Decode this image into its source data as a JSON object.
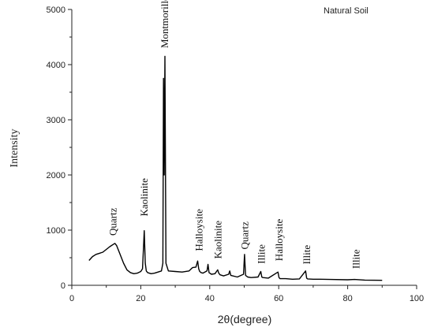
{
  "chart_data": {
    "type": "line",
    "title": "",
    "xlabel": "2θ(degree)",
    "ylabel": "Intensity",
    "xlim": [
      0,
      100
    ],
    "ylim": [
      0,
      5000
    ],
    "x_ticks": [
      0,
      20,
      40,
      60,
      80,
      100
    ],
    "y_ticks": [
      0,
      1000,
      2000,
      3000,
      4000,
      5000
    ],
    "grid": false,
    "legend": {
      "position": "top-right",
      "entries": [
        "Natural Soil"
      ]
    },
    "series": [
      {
        "name": "Natural Soil",
        "color": "#000000",
        "x": [
          5,
          6,
          7,
          8,
          9,
          10,
          11,
          12,
          12.5,
          13,
          14,
          15,
          16,
          17,
          18,
          19,
          20,
          20.5,
          20.8,
          21,
          21.3,
          21.6,
          22,
          23,
          24,
          25,
          26,
          26.4,
          26.6,
          26.8,
          27,
          27.3,
          28,
          30,
          32,
          34,
          35,
          36,
          36.5,
          36.8,
          37.1,
          37.5,
          38,
          39.2,
          39.5,
          39.8,
          40.5,
          41.5,
          42.3,
          42.6,
          43,
          44,
          45.5,
          45.8,
          46.1,
          48,
          49.8,
          50.1,
          50.4,
          51,
          52,
          54,
          54.8,
          55.1,
          55.4,
          57,
          59.8,
          60.1,
          60.4,
          62,
          64,
          66,
          67.8,
          68.1,
          68.4,
          70,
          72,
          75,
          80,
          82,
          85,
          90
        ],
        "y": [
          450,
          520,
          560,
          580,
          600,
          650,
          700,
          740,
          760,
          720,
          560,
          400,
          280,
          230,
          210,
          220,
          250,
          300,
          700,
          990,
          400,
          260,
          230,
          210,
          220,
          240,
          260,
          400,
          3750,
          2000,
          4150,
          400,
          260,
          250,
          240,
          260,
          320,
          330,
          440,
          300,
          250,
          230,
          220,
          260,
          380,
          230,
          200,
          210,
          280,
          220,
          190,
          170,
          200,
          260,
          180,
          150,
          200,
          560,
          180,
          150,
          140,
          150,
          250,
          150,
          140,
          130,
          240,
          140,
          120,
          120,
          110,
          115,
          260,
          130,
          115,
          110,
          110,
          105,
          100,
          105,
          95,
          90
        ]
      }
    ],
    "annotations": [
      {
        "text": "Quartz",
        "x": 12,
        "y": 900
      },
      {
        "text": "Kaolinite",
        "x": 21,
        "y": 1250
      },
      {
        "text": "Montmorillonite",
        "x": 27,
        "y": 4300
      },
      {
        "text": "Halloysite",
        "x": 37,
        "y": 620
      },
      {
        "text": "Kaolinite",
        "x": 42.5,
        "y": 480
      },
      {
        "text": "Quartz",
        "x": 50.2,
        "y": 650
      },
      {
        "text": "Illite",
        "x": 55,
        "y": 390
      },
      {
        "text": "Halloysite",
        "x": 60.2,
        "y": 440
      },
      {
        "text": "Illite",
        "x": 68.2,
        "y": 380
      },
      {
        "text": "Illite",
        "x": 82.5,
        "y": 300
      }
    ]
  }
}
